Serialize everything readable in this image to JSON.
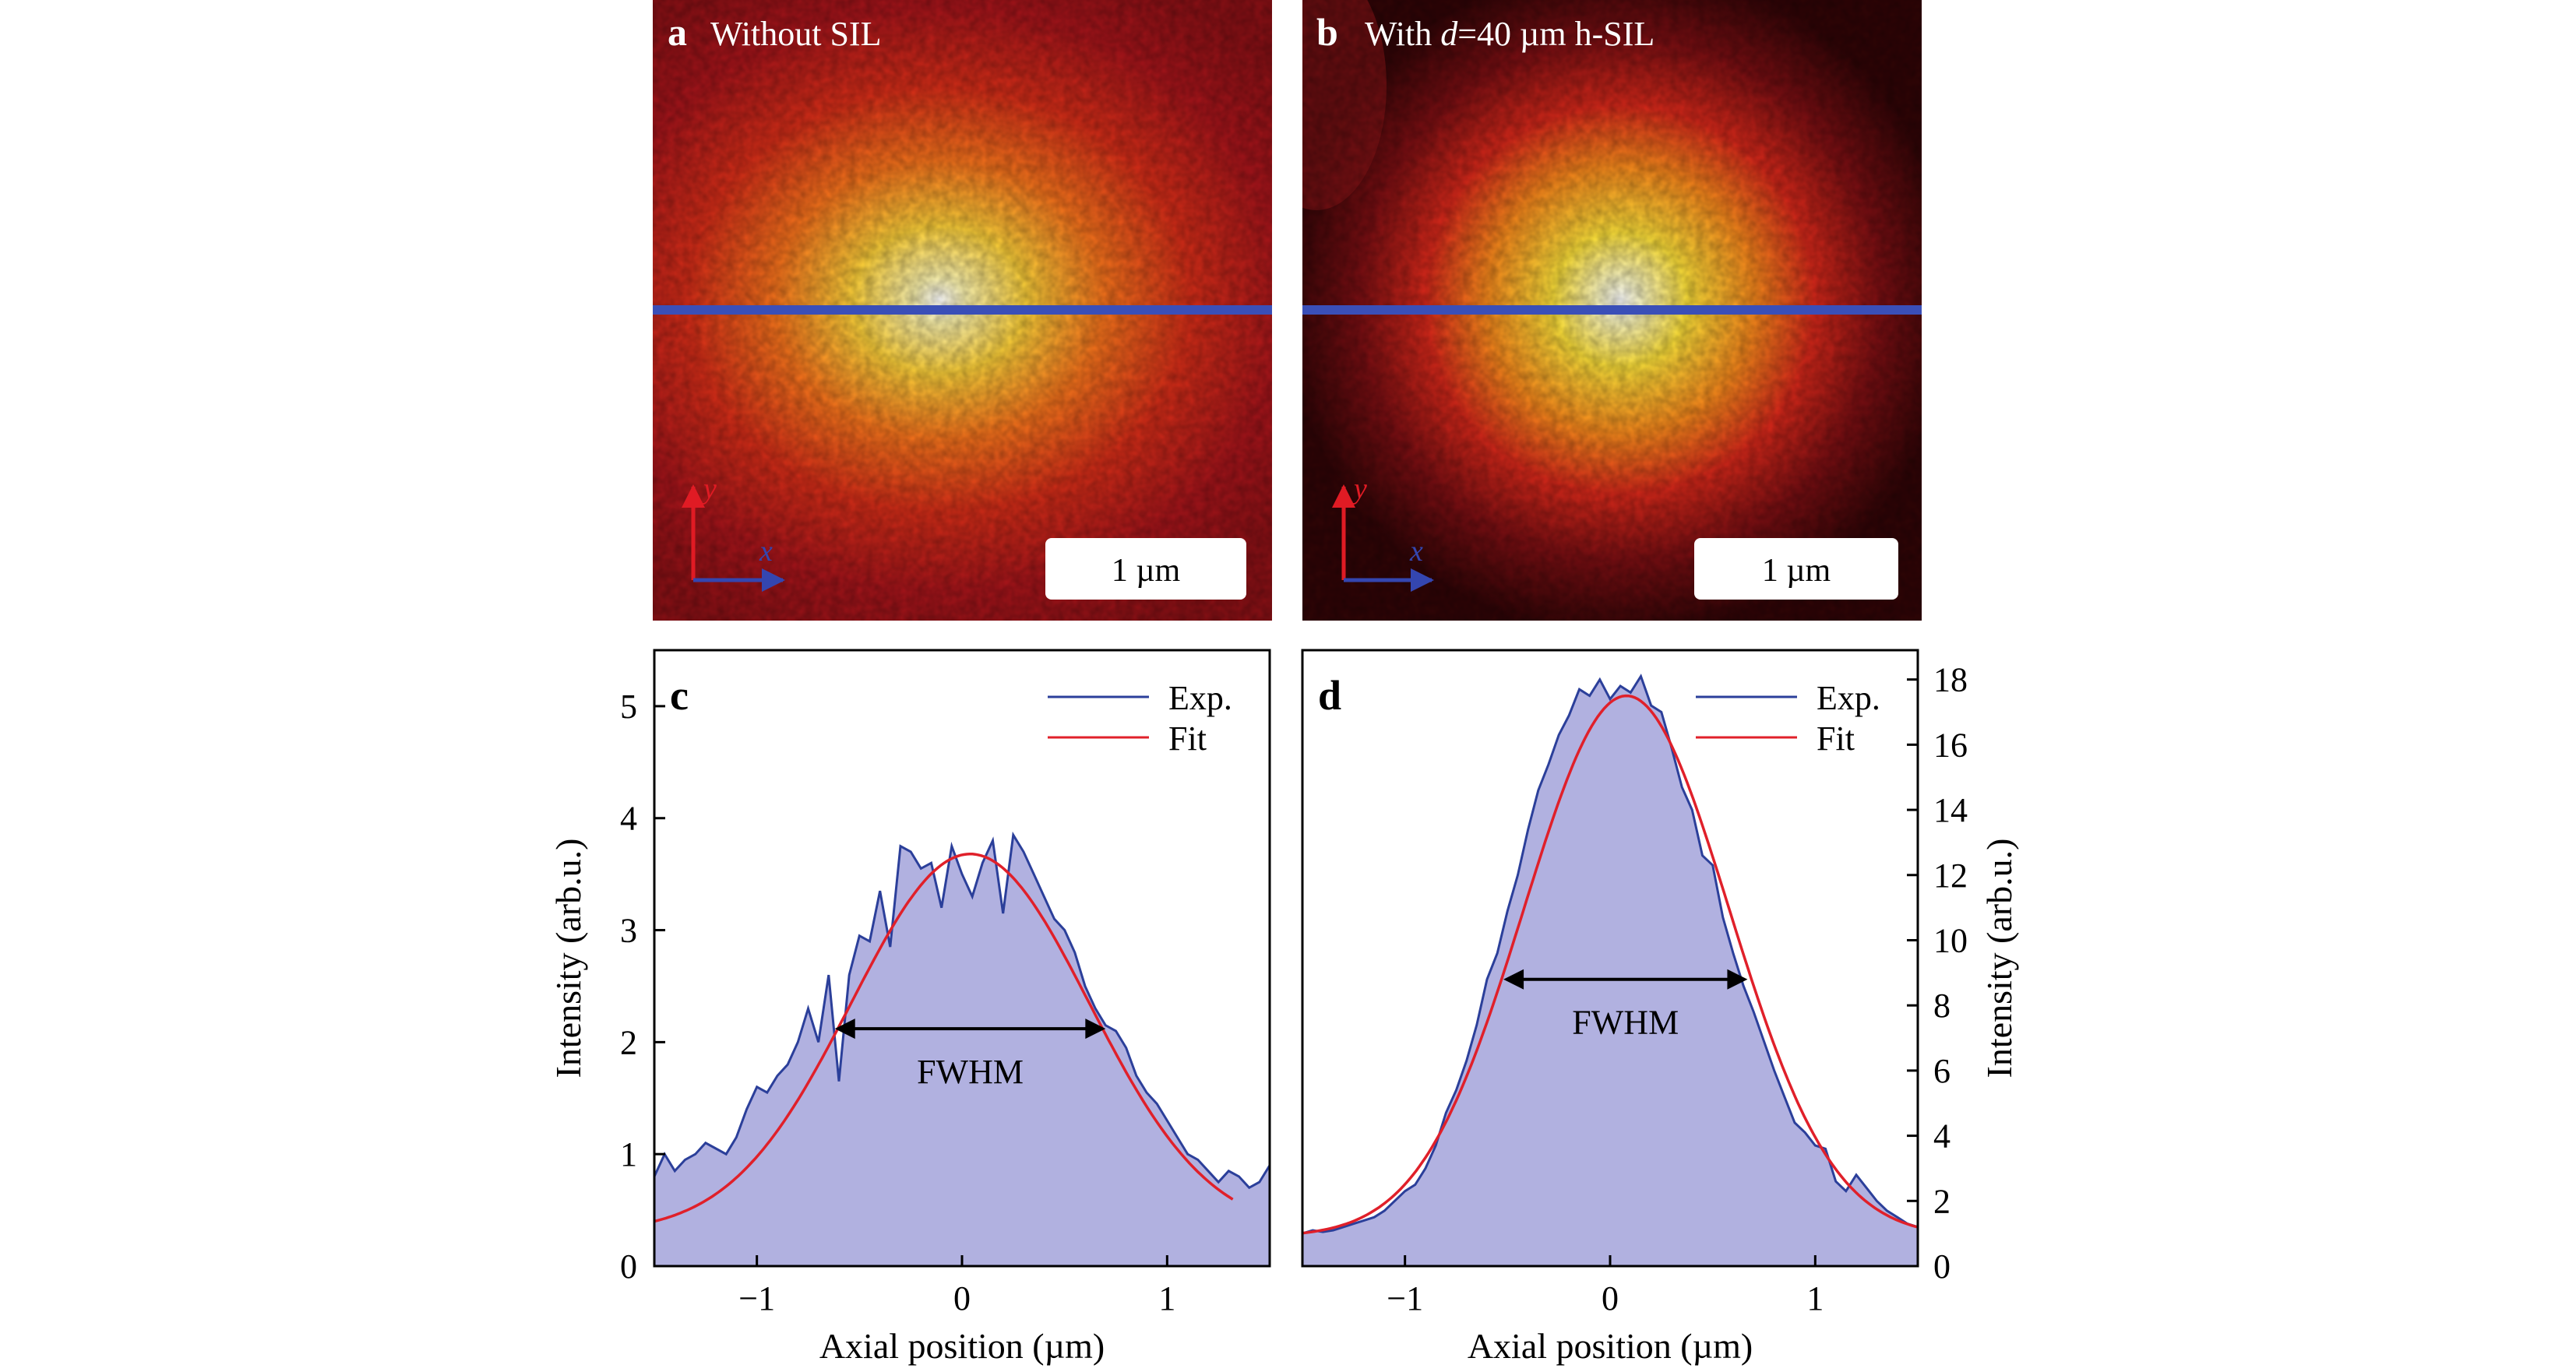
{
  "panels": {
    "a": {
      "letter": "a",
      "label": "Without SIL",
      "scalebar": "1 µm",
      "axis_y": "y",
      "axis_x": "x"
    },
    "b": {
      "letter": "b",
      "label_pre": "With ",
      "label_d": "d",
      "label_post": "=40 µm h-SIL",
      "scalebar": "1 µm",
      "axis_y": "y",
      "axis_x": "x"
    }
  },
  "colors": {
    "exp": "#2b3f9a",
    "fit": "#e0202a",
    "fill": "#b1b1e0",
    "line_cut": "#3a4fb8"
  },
  "chart_data": [
    {
      "type": "area",
      "panel": "c",
      "letter": "c",
      "title": "",
      "xlabel": "Axial position (µm)",
      "ylabel": "Intensity (arb.u.)",
      "xlim": [
        -1.5,
        1.5
      ],
      "ylim": [
        0,
        5.5
      ],
      "xticks": [
        -1,
        0,
        1
      ],
      "xtick_labels": [
        "−1",
        "0",
        "1"
      ],
      "yticks": [
        0,
        1,
        2,
        3,
        4,
        5
      ],
      "ytick_labels": [
        "0",
        "1",
        "2",
        "3",
        "4",
        "5"
      ],
      "legend": {
        "placement": "top-right",
        "entries": [
          "Exp.",
          "Fit"
        ]
      },
      "annotation": {
        "text": "FWHM",
        "x_start": -0.62,
        "x_end": 0.7,
        "y": 2.12
      },
      "series": [
        {
          "name": "Exp.",
          "x": [
            -1.5,
            -1.45,
            -1.4,
            -1.35,
            -1.3,
            -1.25,
            -1.2,
            -1.15,
            -1.1,
            -1.05,
            -1.0,
            -0.95,
            -0.9,
            -0.85,
            -0.8,
            -0.75,
            -0.7,
            -0.65,
            -0.6,
            -0.55,
            -0.5,
            -0.45,
            -0.4,
            -0.35,
            -0.3,
            -0.25,
            -0.2,
            -0.15,
            -0.1,
            -0.05,
            0.0,
            0.05,
            0.1,
            0.15,
            0.2,
            0.25,
            0.3,
            0.35,
            0.4,
            0.45,
            0.5,
            0.55,
            0.6,
            0.65,
            0.7,
            0.75,
            0.8,
            0.85,
            0.9,
            0.95,
            1.0,
            1.05,
            1.1,
            1.15,
            1.2,
            1.25,
            1.3,
            1.35,
            1.4,
            1.45,
            1.5
          ],
          "y": [
            0.8,
            1.0,
            0.85,
            0.95,
            1.0,
            1.1,
            1.05,
            1.0,
            1.15,
            1.4,
            1.6,
            1.55,
            1.7,
            1.8,
            2.0,
            2.3,
            2.0,
            2.6,
            1.65,
            2.6,
            2.95,
            2.9,
            3.35,
            2.85,
            3.75,
            3.7,
            3.55,
            3.6,
            3.2,
            3.75,
            3.5,
            3.3,
            3.6,
            3.8,
            3.15,
            3.85,
            3.7,
            3.5,
            3.3,
            3.1,
            3.0,
            2.8,
            2.5,
            2.3,
            2.15,
            2.1,
            1.95,
            1.7,
            1.55,
            1.45,
            1.3,
            1.15,
            1.0,
            0.95,
            0.85,
            0.75,
            0.85,
            0.8,
            0.7,
            0.75,
            0.9
          ]
        },
        {
          "name": "Fit",
          "amplitude": 3.38,
          "center": 0.04,
          "sigma": 0.58,
          "offset": 0.3,
          "x_range": [
            -1.5,
            1.32
          ]
        }
      ]
    },
    {
      "type": "area",
      "panel": "d",
      "letter": "d",
      "title": "",
      "xlabel": "Axial position (µm)",
      "ylabel": "Intensity (arb.u.)",
      "xlim": [
        -1.5,
        1.5
      ],
      "ylim": [
        0,
        18.9
      ],
      "xticks": [
        -1,
        0,
        1
      ],
      "xtick_labels": [
        "−1",
        "0",
        "1"
      ],
      "yticks": [
        0,
        2,
        4,
        6,
        8,
        10,
        12,
        14,
        16,
        18
      ],
      "ytick_labels": [
        "0",
        "2",
        "4",
        "6",
        "8",
        "10",
        "12",
        "14",
        "16",
        "18"
      ],
      "legend": {
        "placement": "top-right",
        "entries": [
          "Exp.",
          "Fit"
        ]
      },
      "annotation": {
        "text": "FWHM",
        "x_start": -0.52,
        "x_end": 0.67,
        "y": 8.8
      },
      "series": [
        {
          "name": "Exp.",
          "x": [
            -1.5,
            -1.45,
            -1.4,
            -1.35,
            -1.3,
            -1.25,
            -1.2,
            -1.15,
            -1.1,
            -1.05,
            -1.0,
            -0.95,
            -0.9,
            -0.85,
            -0.8,
            -0.75,
            -0.7,
            -0.65,
            -0.6,
            -0.55,
            -0.5,
            -0.45,
            -0.4,
            -0.35,
            -0.3,
            -0.25,
            -0.2,
            -0.15,
            -0.1,
            -0.05,
            0.0,
            0.05,
            0.1,
            0.15,
            0.2,
            0.25,
            0.3,
            0.35,
            0.4,
            0.45,
            0.5,
            0.55,
            0.6,
            0.65,
            0.7,
            0.75,
            0.8,
            0.85,
            0.9,
            0.95,
            1.0,
            1.05,
            1.1,
            1.15,
            1.2,
            1.25,
            1.3,
            1.35,
            1.4,
            1.45,
            1.5
          ],
          "y": [
            1.0,
            1.1,
            1.05,
            1.1,
            1.2,
            1.3,
            1.4,
            1.5,
            1.7,
            2.0,
            2.3,
            2.5,
            3.0,
            3.7,
            4.7,
            5.4,
            6.3,
            7.4,
            8.8,
            9.6,
            10.9,
            12.0,
            13.4,
            14.6,
            15.4,
            16.3,
            16.9,
            17.7,
            17.5,
            18.0,
            17.4,
            17.8,
            17.6,
            18.1,
            17.2,
            17.0,
            15.9,
            14.7,
            14.0,
            12.6,
            12.3,
            10.7,
            9.6,
            8.6,
            7.8,
            6.9,
            6.0,
            5.2,
            4.4,
            4.1,
            3.7,
            3.6,
            2.6,
            2.3,
            2.8,
            2.4,
            2.0,
            1.7,
            1.5,
            1.3,
            1.2
          ]
        },
        {
          "name": "Fit",
          "amplitude": 16.6,
          "center": 0.08,
          "sigma": 0.5,
          "offset": 0.9,
          "x_range": [
            -1.5,
            1.5
          ]
        }
      ]
    }
  ]
}
